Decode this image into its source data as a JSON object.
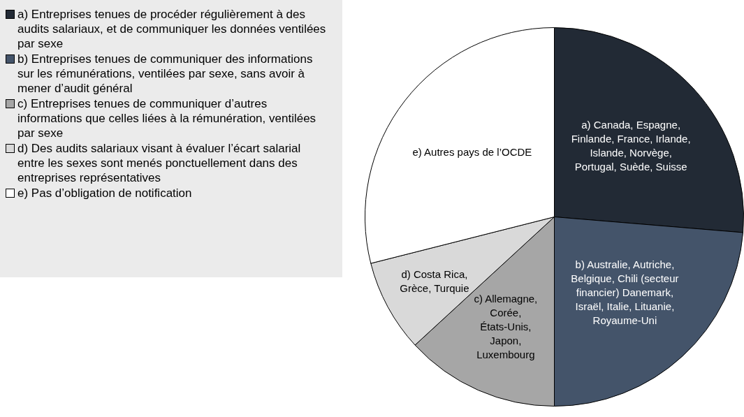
{
  "chart_data": {
    "type": "pie",
    "categories": [
      "a) Entreprises tenues de procéder régulièrement à des audits salariaux, et de communiquer les données ventilées par sexe",
      "b) Entreprises tenues de communiquer des informations sur les rémunérations, ventilées par sexe, sans avoir à mener d’audit général",
      "c) Entreprises tenues de communiquer d’autres informations que celles liées à la rémunération, ventilées par sexe",
      "d) Des audits salariaux visant à évaluer l’écart salarial entre les sexes sont menés ponctuellement dans des entreprises représentatives",
      "e) Pas d’obligation de notification"
    ],
    "values": [
      26.32,
      23.68,
      13.16,
      7.89,
      28.95
    ],
    "colors": [
      "#222a35",
      "#44546a",
      "#a6a6a6",
      "#d9d9d9",
      "#ffffff"
    ],
    "annotations": [
      "a) Canada, Espagne, Finlande, France, Irlande, Islande, Norvège, Portugal, Suède, Suisse",
      "b) Australie, Autriche, Belgique, Chili (secteur financier) Danemark, Israël, Italie, Lituanie, Royaume-Uni",
      "c) Allemagne, Corée, États-Unis, Japon, Luxembourg",
      "d) Costa Rica, Grèce, Turquie",
      "e) Autres pays de l’OCDE"
    ],
    "legend": "left"
  }
}
